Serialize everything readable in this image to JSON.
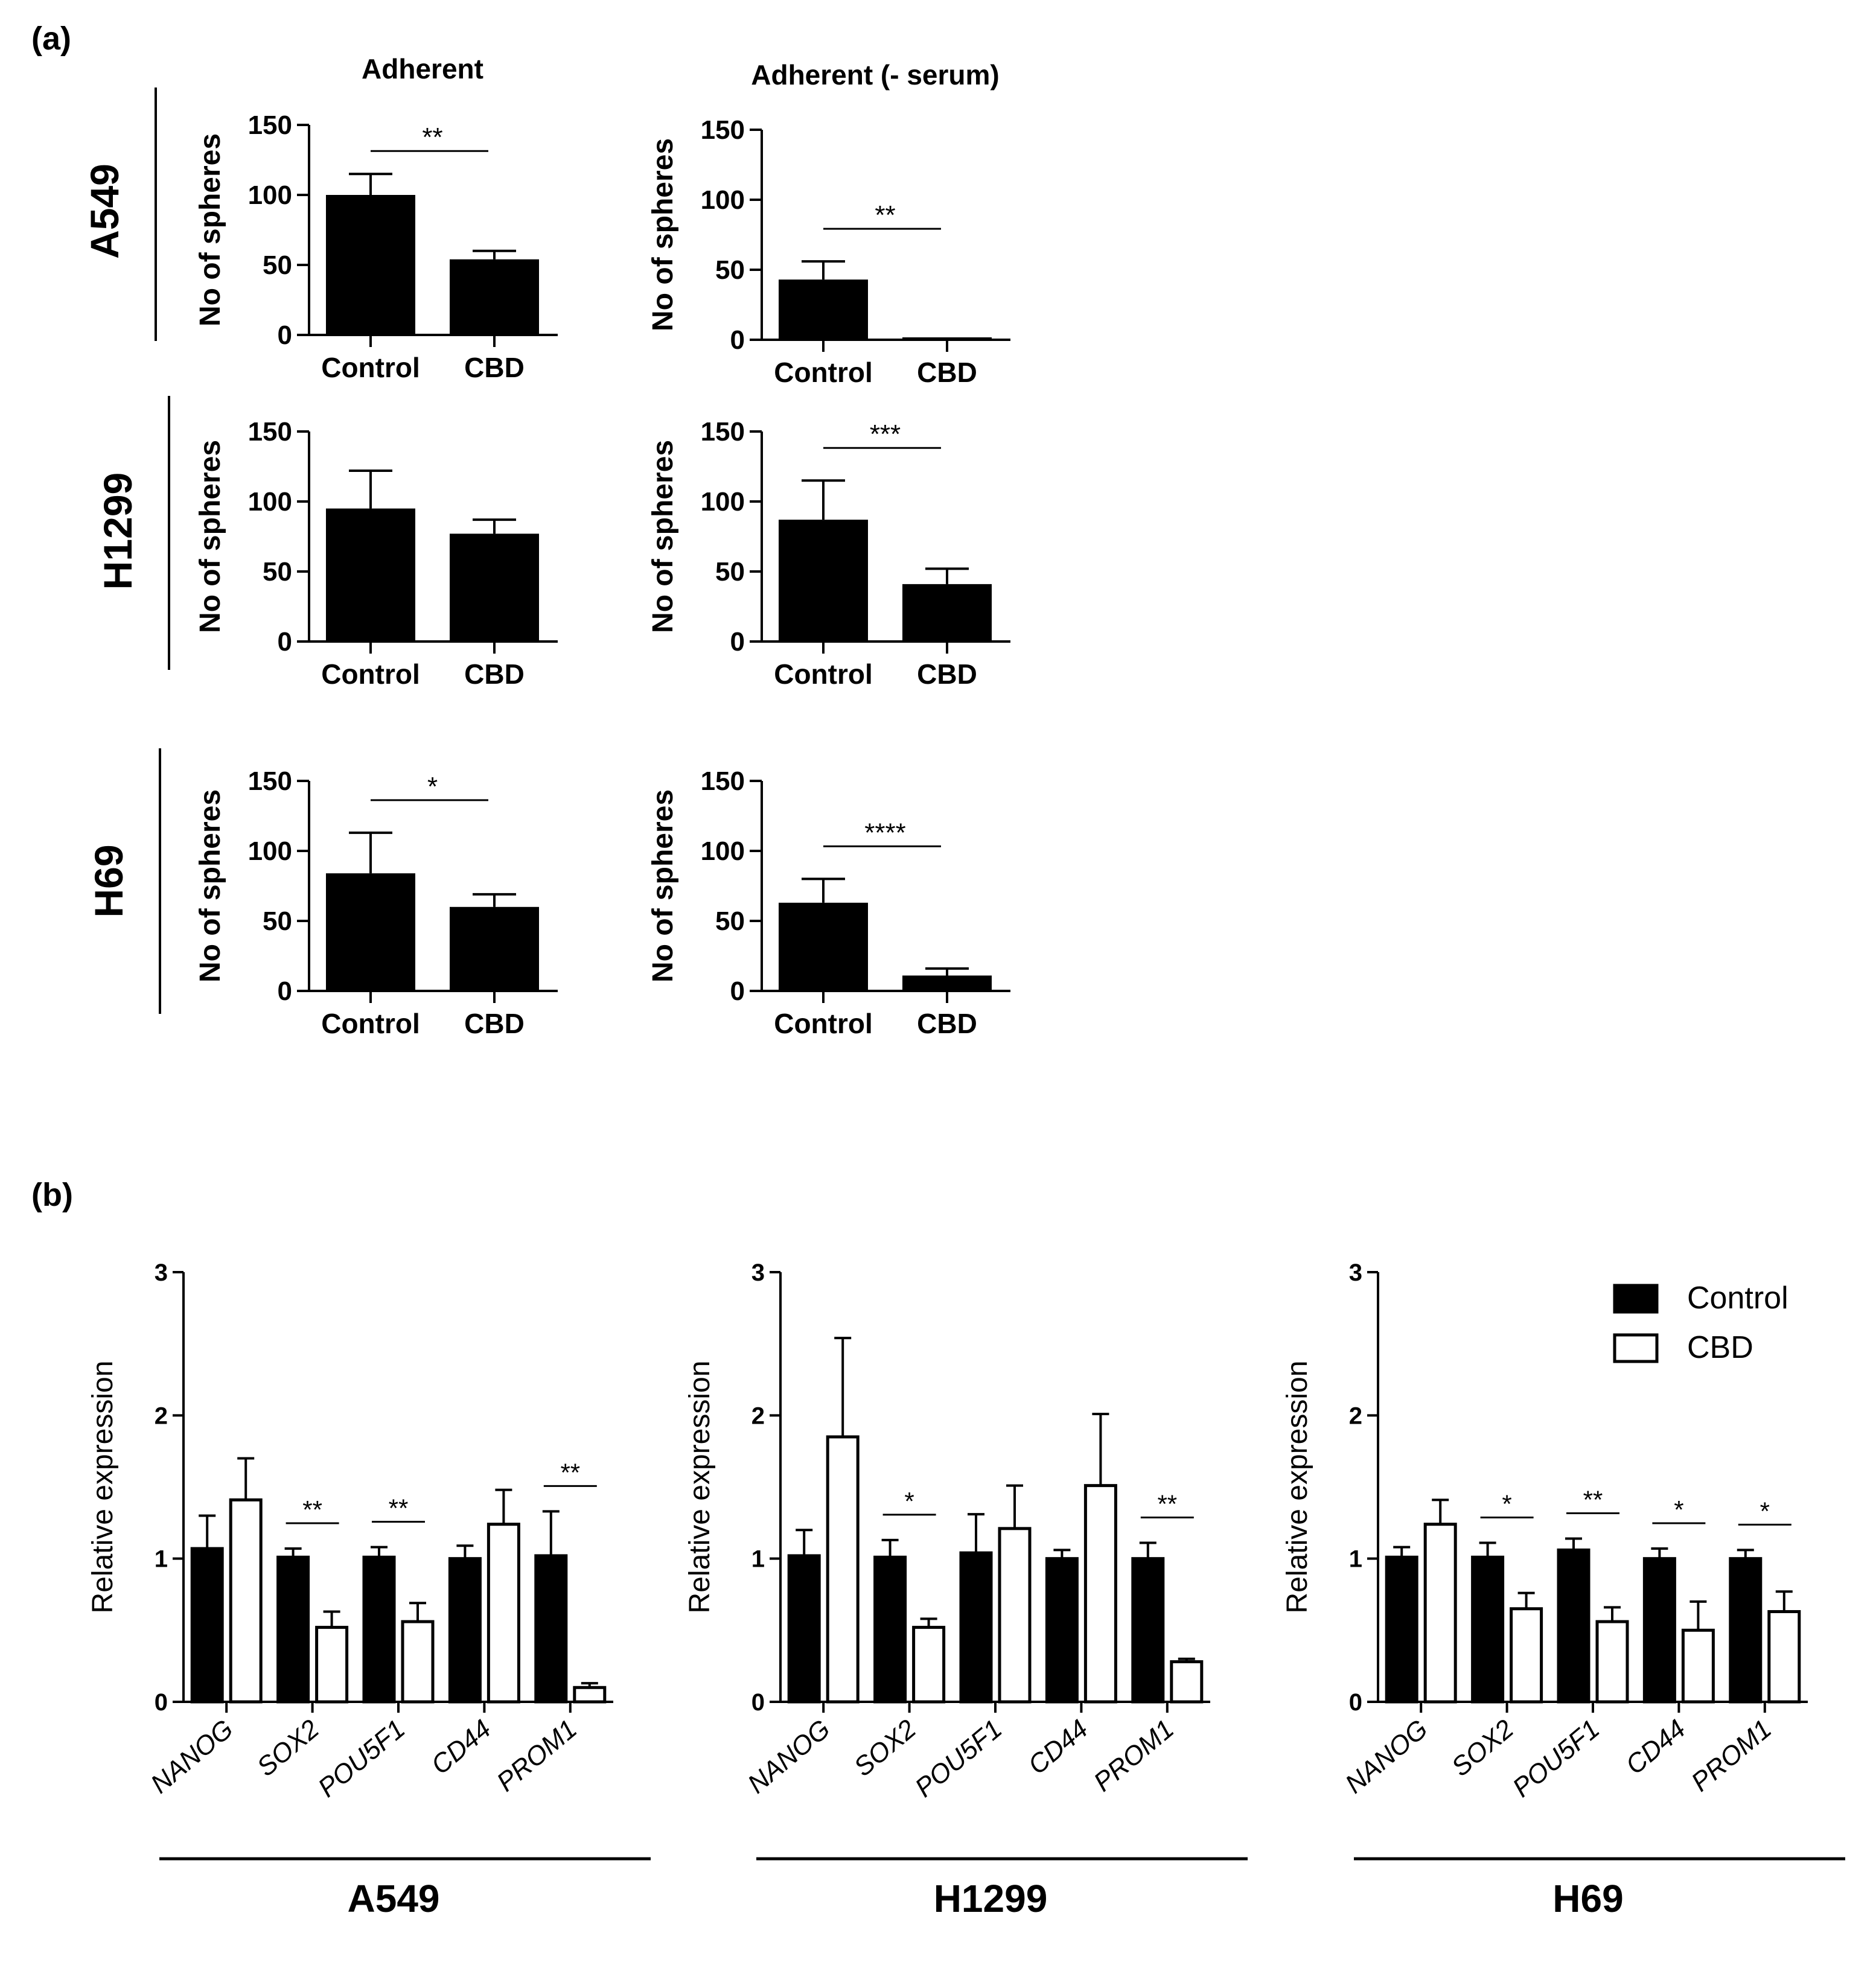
{
  "panel_labels": {
    "a": "(a)",
    "b": "(b)"
  },
  "panel_a": {
    "column_titles": [
      "Adherent",
      "Adherent (- serum)"
    ],
    "row_labels": [
      "A549",
      "H1299",
      "H69"
    ]
  },
  "legend": {
    "items": [
      "Control",
      "CBD"
    ],
    "colors": {
      "control": "#000000",
      "cbd": "#ffffff"
    }
  },
  "chart_data": [
    {
      "id": "a_A549_adherent",
      "type": "bar",
      "title": "Adherent",
      "cell_line": "A549",
      "categories": [
        "Control",
        "CBD"
      ],
      "values": [
        100,
        54
      ],
      "errors": [
        15,
        6
      ],
      "xlabel": "",
      "ylabel": "No of spheres",
      "ylim": [
        0,
        150
      ],
      "yticks": [
        0,
        50,
        100,
        150
      ],
      "significance": "**"
    },
    {
      "id": "a_A549_serum",
      "type": "bar",
      "title": "Adherent (- serum)",
      "cell_line": "A549",
      "categories": [
        "Control",
        "CBD"
      ],
      "values": [
        43,
        1
      ],
      "errors": [
        13,
        0
      ],
      "xlabel": "",
      "ylabel": "No of spheres",
      "ylim": [
        0,
        150
      ],
      "yticks": [
        0,
        50,
        100,
        150
      ],
      "significance": "**"
    },
    {
      "id": "a_H1299_adherent",
      "type": "bar",
      "title": "Adherent",
      "cell_line": "H1299",
      "categories": [
        "Control",
        "CBD"
      ],
      "values": [
        95,
        77
      ],
      "errors": [
        27,
        10
      ],
      "xlabel": "",
      "ylabel": "No of spheres",
      "ylim": [
        0,
        150
      ],
      "yticks": [
        0,
        50,
        100,
        150
      ],
      "significance": ""
    },
    {
      "id": "a_H1299_serum",
      "type": "bar",
      "title": "Adherent (- serum)",
      "cell_line": "H1299",
      "categories": [
        "Control",
        "CBD"
      ],
      "values": [
        87,
        41
      ],
      "errors": [
        28,
        11
      ],
      "xlabel": "",
      "ylabel": "No of spheres",
      "ylim": [
        0,
        150
      ],
      "yticks": [
        0,
        50,
        100,
        150
      ],
      "significance": "***"
    },
    {
      "id": "a_H69_adherent",
      "type": "bar",
      "title": "Adherent",
      "cell_line": "H69",
      "categories": [
        "Control",
        "CBD"
      ],
      "values": [
        84,
        60
      ],
      "errors": [
        29,
        9
      ],
      "xlabel": "",
      "ylabel": "No of spheres",
      "ylim": [
        0,
        150
      ],
      "yticks": [
        0,
        50,
        100,
        150
      ],
      "significance": "*"
    },
    {
      "id": "a_H69_serum",
      "type": "bar",
      "title": "Adherent (- serum)",
      "cell_line": "H69",
      "categories": [
        "Control",
        "CBD"
      ],
      "values": [
        63,
        11
      ],
      "errors": [
        17,
        5
      ],
      "xlabel": "",
      "ylabel": "No of spheres",
      "ylim": [
        0,
        150
      ],
      "yticks": [
        0,
        50,
        100,
        150
      ],
      "significance": "****"
    },
    {
      "id": "b_A549",
      "type": "bar",
      "cell_line": "A549",
      "categories": [
        "NANOG",
        "SOX2",
        "POU5F1",
        "CD44",
        "PROM1"
      ],
      "series": [
        {
          "name": "Control",
          "values": [
            1.07,
            1.01,
            1.01,
            1.0,
            1.02
          ],
          "errors": [
            0.23,
            0.06,
            0.07,
            0.09,
            0.31
          ]
        },
        {
          "name": "CBD",
          "values": [
            1.41,
            0.52,
            0.56,
            1.24,
            0.1
          ],
          "errors": [
            0.29,
            0.11,
            0.13,
            0.24,
            0.03
          ]
        }
      ],
      "significance": [
        "",
        "**",
        "**",
        "",
        "**"
      ],
      "xlabel": "A549",
      "ylabel": "Relative expression",
      "ylim": [
        0,
        3
      ],
      "yticks": [
        0,
        1,
        2,
        3
      ]
    },
    {
      "id": "b_H1299",
      "type": "bar",
      "cell_line": "H1299",
      "categories": [
        "NANOG",
        "SOX2",
        "POU5F1",
        "CD44",
        "PROM1"
      ],
      "series": [
        {
          "name": "Control",
          "values": [
            1.02,
            1.01,
            1.04,
            1.0,
            1.0
          ],
          "errors": [
            0.18,
            0.12,
            0.27,
            0.06,
            0.11
          ]
        },
        {
          "name": "CBD",
          "values": [
            1.85,
            0.52,
            1.21,
            1.51,
            0.28
          ],
          "errors": [
            0.69,
            0.06,
            0.3,
            0.5,
            0.02
          ]
        }
      ],
      "significance": [
        "",
        "*",
        "",
        "",
        "**"
      ],
      "xlabel": "H1299",
      "ylabel": "Relative expression",
      "ylim": [
        0,
        3
      ],
      "yticks": [
        0,
        1,
        2,
        3
      ]
    },
    {
      "id": "b_H69",
      "type": "bar",
      "cell_line": "H69",
      "categories": [
        "NANOG",
        "SOX2",
        "POU5F1",
        "CD44",
        "PROM1"
      ],
      "series": [
        {
          "name": "Control",
          "values": [
            1.01,
            1.01,
            1.06,
            1.0,
            1.0
          ],
          "errors": [
            0.07,
            0.1,
            0.08,
            0.07,
            0.06
          ]
        },
        {
          "name": "CBD",
          "values": [
            1.24,
            0.65,
            0.56,
            0.5,
            0.63
          ],
          "errors": [
            0.17,
            0.11,
            0.1,
            0.2,
            0.14
          ]
        }
      ],
      "significance": [
        "",
        "*",
        "**",
        "*",
        "*"
      ],
      "xlabel": "H69",
      "ylabel": "Relative expression",
      "ylim": [
        0,
        3
      ],
      "yticks": [
        0,
        1,
        2,
        3
      ]
    }
  ]
}
